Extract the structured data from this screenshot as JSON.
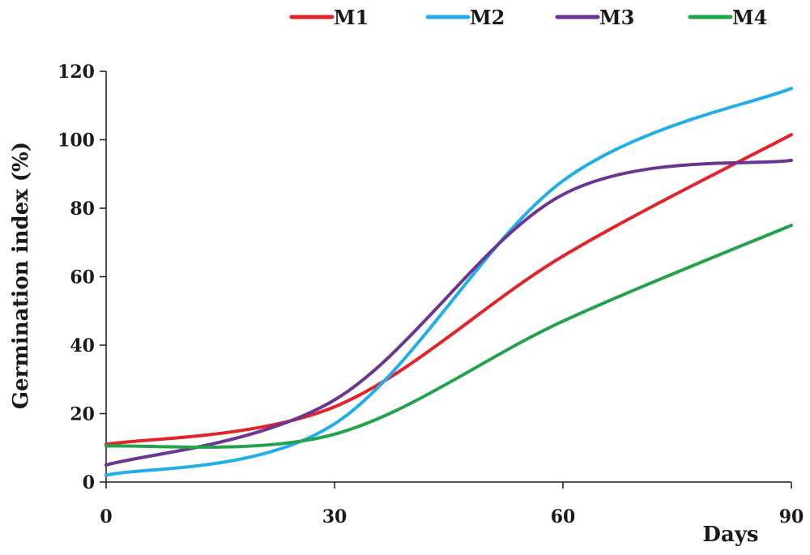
{
  "chart_data": {
    "type": "line",
    "title": "",
    "xlabel": "Days",
    "ylabel": "Germination index (%)",
    "xlim": [
      0,
      90
    ],
    "ylim": [
      0,
      120
    ],
    "xticks": [
      0,
      30,
      60,
      90
    ],
    "yticks": [
      0,
      20,
      40,
      60,
      80,
      100,
      120
    ],
    "grid": false,
    "legend_position": "top",
    "x": [
      0,
      30,
      60,
      90
    ],
    "series": [
      {
        "name": "M1",
        "color": "#e0242a",
        "values": [
          11,
          22,
          66,
          101.5
        ]
      },
      {
        "name": "M2",
        "color": "#22aee6",
        "values": [
          2,
          17,
          88,
          115
        ]
      },
      {
        "name": "M3",
        "color": "#6a3593",
        "values": [
          5,
          24,
          84,
          94
        ]
      },
      {
        "name": "M4",
        "color": "#22a24a",
        "values": [
          10.5,
          14,
          47,
          75
        ]
      }
    ]
  }
}
